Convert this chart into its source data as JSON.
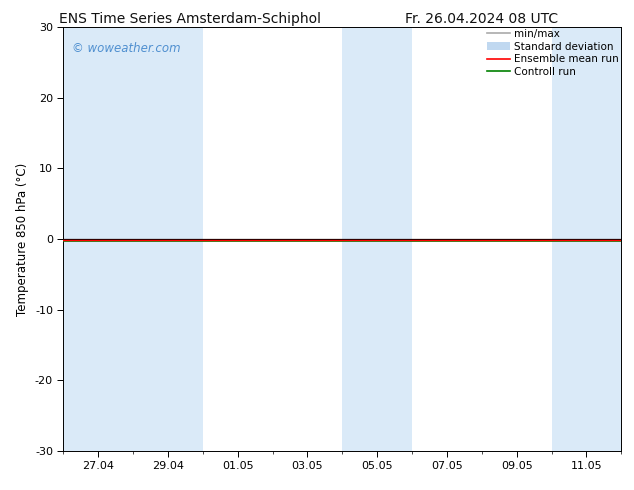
{
  "title_left": "ENS Time Series Amsterdam-Schiphol",
  "title_right": "Fr. 26.04.2024 08 UTC",
  "ylabel": "Temperature 850 hPa (°C)",
  "ylim": [
    -30,
    30
  ],
  "yticks": [
    -30,
    -20,
    -10,
    0,
    10,
    20,
    30
  ],
  "xtick_labels": [
    "27.04",
    "29.04",
    "01.05",
    "03.05",
    "05.05",
    "07.05",
    "09.05",
    "11.05"
  ],
  "xtick_positions": [
    1,
    3,
    5,
    7,
    9,
    11,
    13,
    15
  ],
  "xlim": [
    0,
    16
  ],
  "watermark": "© woweather.com",
  "watermark_color": "#5090d0",
  "bg_color": "#ffffff",
  "plot_bg_color": "#ffffff",
  "shaded_bands": [
    [
      0,
      2
    ],
    [
      2,
      4
    ],
    [
      8,
      10
    ],
    [
      14,
      16
    ]
  ],
  "shaded_color": "#daeaf8",
  "zero_line_color": "#000000",
  "zero_line_lw": 0.9,
  "control_run_y": -0.3,
  "control_run_color": "#008000",
  "control_run_lw": 1.2,
  "ensemble_mean_y": -0.15,
  "ensemble_mean_color": "#ff0000",
  "ensemble_mean_lw": 1.0,
  "legend_items": [
    {
      "label": "min/max",
      "color": "#aaaaaa",
      "lw": 1.2
    },
    {
      "label": "Standard deviation",
      "color": "#c0d8f0",
      "patch": true
    },
    {
      "label": "Ensemble mean run",
      "color": "#ff0000",
      "lw": 1.2
    },
    {
      "label": "Controll run",
      "color": "#008000",
      "lw": 1.2
    }
  ],
  "title_fontsize": 10,
  "label_fontsize": 8.5,
  "tick_fontsize": 8,
  "legend_fontsize": 7.5
}
